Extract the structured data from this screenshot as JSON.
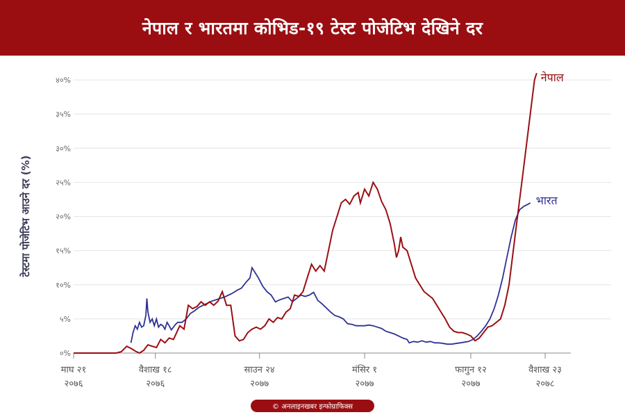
{
  "header": {
    "title": "नेपाल र भारतमा कोभिड-१९ टेस्ट पोजेटिभ देखिने दर"
  },
  "footer": {
    "credit": "© अनलाइनखबर इन्फोग्राफिक्स"
  },
  "colors": {
    "banner": "#9a0e12",
    "nepal": "#9a0e12",
    "india": "#2e3192",
    "grid": "#e4e4e4"
  },
  "chart_data": {
    "type": "line",
    "title": "नेपाल र भारतमा कोभिड-१९ टेस्ट पोजेटिभ देखिने दर",
    "ylabel": "टेस्टमा पोजेटिभ आउने दर (%)",
    "ylim": [
      0,
      40
    ],
    "grid": true,
    "yticks": [
      {
        "value": 0,
        "label": "०%"
      },
      {
        "value": 5,
        "label": "५%"
      },
      {
        "value": 10,
        "label": "१०%"
      },
      {
        "value": 15,
        "label": "१५%"
      },
      {
        "value": 20,
        "label": "२०%"
      },
      {
        "value": 25,
        "label": "२५%"
      },
      {
        "value": 30,
        "label": "३०%"
      },
      {
        "value": 35,
        "label": "३५%"
      },
      {
        "value": 40,
        "label": "४०%"
      }
    ],
    "xticks": [
      {
        "day": 0,
        "line1": "माघ २१",
        "line2": "२०७६"
      },
      {
        "day": 77,
        "line1": "वैशाख १८",
        "line2": "२०७६"
      },
      {
        "day": 175,
        "line1": "साउन २४",
        "line2": "२०७७"
      },
      {
        "day": 274,
        "line1": "मंसिर १",
        "line2": "२०७७"
      },
      {
        "day": 374,
        "line1": "फागुन १२",
        "line2": "२०७७"
      },
      {
        "day": 444,
        "line1": "वैशाख २३",
        "line2": "२०७८"
      }
    ],
    "xlim": [
      0,
      444
    ],
    "series": [
      {
        "name": "नेपाल",
        "points": [
          [
            0,
            0
          ],
          [
            20,
            0
          ],
          [
            40,
            0
          ],
          [
            45,
            0.2
          ],
          [
            50,
            1
          ],
          [
            55,
            0.6
          ],
          [
            58,
            0.3
          ],
          [
            62,
            0
          ],
          [
            66,
            0.4
          ],
          [
            70,
            1.2
          ],
          [
            74,
            1
          ],
          [
            78,
            0.8
          ],
          [
            82,
            2
          ],
          [
            86,
            1.5
          ],
          [
            90,
            2.2
          ],
          [
            94,
            2
          ],
          [
            100,
            4
          ],
          [
            104,
            3.5
          ],
          [
            108,
            7
          ],
          [
            112,
            6.5
          ],
          [
            116,
            6.8
          ],
          [
            120,
            7.5
          ],
          [
            124,
            7
          ],
          [
            128,
            7.5
          ],
          [
            132,
            7
          ],
          [
            136,
            7.6
          ],
          [
            140,
            9
          ],
          [
            144,
            7
          ],
          [
            148,
            7
          ],
          [
            152,
            2.5
          ],
          [
            156,
            1.8
          ],
          [
            160,
            2
          ],
          [
            164,
            3
          ],
          [
            168,
            3.5
          ],
          [
            172,
            3.8
          ],
          [
            176,
            3.5
          ],
          [
            180,
            4
          ],
          [
            184,
            5
          ],
          [
            188,
            4.5
          ],
          [
            192,
            5.2
          ],
          [
            196,
            5
          ],
          [
            200,
            6
          ],
          [
            204,
            6.5
          ],
          [
            208,
            8.5
          ],
          [
            212,
            8.3
          ],
          [
            216,
            9
          ],
          [
            220,
            11
          ],
          [
            224,
            13
          ],
          [
            228,
            12
          ],
          [
            232,
            12.8
          ],
          [
            236,
            12
          ],
          [
            240,
            15
          ],
          [
            244,
            18
          ],
          [
            248,
            20
          ],
          [
            252,
            22
          ],
          [
            256,
            22.5
          ],
          [
            260,
            21.8
          ],
          [
            264,
            23
          ],
          [
            268,
            23.5
          ],
          [
            270,
            22
          ],
          [
            274,
            24
          ],
          [
            278,
            23
          ],
          [
            282,
            25
          ],
          [
            286,
            24
          ],
          [
            290,
            22.2
          ],
          [
            294,
            21
          ],
          [
            298,
            19
          ],
          [
            302,
            16
          ],
          [
            304,
            14
          ],
          [
            306,
            15
          ],
          [
            308,
            17
          ],
          [
            310,
            15.5
          ],
          [
            314,
            15
          ],
          [
            318,
            13
          ],
          [
            322,
            11
          ],
          [
            326,
            10
          ],
          [
            330,
            9
          ],
          [
            334,
            8.5
          ],
          [
            338,
            8
          ],
          [
            342,
            7
          ],
          [
            346,
            6
          ],
          [
            350,
            5
          ],
          [
            354,
            3.8
          ],
          [
            358,
            3.2
          ],
          [
            362,
            3
          ],
          [
            366,
            3
          ],
          [
            370,
            2.8
          ],
          [
            374,
            2.5
          ],
          [
            378,
            1.8
          ],
          [
            382,
            2.2
          ],
          [
            386,
            3
          ],
          [
            390,
            3.8
          ],
          [
            394,
            4
          ],
          [
            398,
            4.5
          ],
          [
            402,
            5
          ],
          [
            406,
            7
          ],
          [
            410,
            10
          ],
          [
            414,
            15
          ],
          [
            418,
            20
          ],
          [
            422,
            25
          ],
          [
            426,
            30
          ],
          [
            430,
            35
          ],
          [
            434,
            40
          ],
          [
            436,
            41
          ]
        ]
      },
      {
        "name": "भारत",
        "points": [
          [
            54,
            1.5
          ],
          [
            56,
            3
          ],
          [
            58,
            4
          ],
          [
            60,
            3.5
          ],
          [
            62,
            4.5
          ],
          [
            64,
            3.8
          ],
          [
            66,
            4
          ],
          [
            68,
            5.5
          ],
          [
            69,
            8
          ],
          [
            70,
            6
          ],
          [
            72,
            4.5
          ],
          [
            74,
            5
          ],
          [
            76,
            4
          ],
          [
            78,
            5
          ],
          [
            80,
            3.8
          ],
          [
            82,
            4.2
          ],
          [
            84,
            4
          ],
          [
            86,
            3.5
          ],
          [
            88,
            4.5
          ],
          [
            90,
            4
          ],
          [
            92,
            3.4
          ],
          [
            94,
            3.8
          ],
          [
            96,
            4.2
          ],
          [
            98,
            4.5
          ],
          [
            102,
            4.5
          ],
          [
            106,
            5
          ],
          [
            110,
            5.8
          ],
          [
            114,
            6.2
          ],
          [
            118,
            6.7
          ],
          [
            122,
            7
          ],
          [
            126,
            7.3
          ],
          [
            130,
            7.6
          ],
          [
            134,
            7.8
          ],
          [
            138,
            8
          ],
          [
            142,
            8.2
          ],
          [
            146,
            8.5
          ],
          [
            150,
            8.8
          ],
          [
            154,
            9.2
          ],
          [
            158,
            9.5
          ],
          [
            162,
            10.3
          ],
          [
            166,
            11
          ],
          [
            168,
            12.5
          ],
          [
            170,
            12
          ],
          [
            174,
            11
          ],
          [
            178,
            9.8
          ],
          [
            182,
            9
          ],
          [
            186,
            8.5
          ],
          [
            190,
            7.5
          ],
          [
            194,
            7.8
          ],
          [
            198,
            8
          ],
          [
            202,
            8.2
          ],
          [
            206,
            7.5
          ],
          [
            210,
            8
          ],
          [
            214,
            8.5
          ],
          [
            218,
            8.3
          ],
          [
            222,
            8.5
          ],
          [
            226,
            8.9
          ],
          [
            230,
            7.7
          ],
          [
            234,
            7.2
          ],
          [
            238,
            6.6
          ],
          [
            242,
            6
          ],
          [
            246,
            5.5
          ],
          [
            250,
            5.3
          ],
          [
            254,
            5
          ],
          [
            258,
            4.3
          ],
          [
            262,
            4.2
          ],
          [
            266,
            4
          ],
          [
            270,
            4
          ],
          [
            274,
            4
          ],
          [
            278,
            4.1
          ],
          [
            282,
            4
          ],
          [
            286,
            3.8
          ],
          [
            290,
            3.6
          ],
          [
            294,
            3.2
          ],
          [
            298,
            3
          ],
          [
            302,
            2.8
          ],
          [
            306,
            2.5
          ],
          [
            310,
            2.2
          ],
          [
            314,
            2
          ],
          [
            316,
            1.5
          ],
          [
            320,
            1.7
          ],
          [
            324,
            1.6
          ],
          [
            328,
            1.8
          ],
          [
            332,
            1.6
          ],
          [
            336,
            1.7
          ],
          [
            340,
            1.5
          ],
          [
            344,
            1.5
          ],
          [
            348,
            1.4
          ],
          [
            352,
            1.3
          ],
          [
            356,
            1.3
          ],
          [
            360,
            1.4
          ],
          [
            364,
            1.5
          ],
          [
            368,
            1.6
          ],
          [
            372,
            1.7
          ],
          [
            376,
            2
          ],
          [
            380,
            2.5
          ],
          [
            384,
            3.2
          ],
          [
            388,
            4
          ],
          [
            392,
            5
          ],
          [
            396,
            6.5
          ],
          [
            400,
            8.5
          ],
          [
            404,
            11
          ],
          [
            408,
            14
          ],
          [
            412,
            17
          ],
          [
            416,
            19.5
          ],
          [
            420,
            21
          ],
          [
            424,
            21.5
          ],
          [
            428,
            21.8
          ],
          [
            430,
            22
          ]
        ]
      }
    ]
  }
}
